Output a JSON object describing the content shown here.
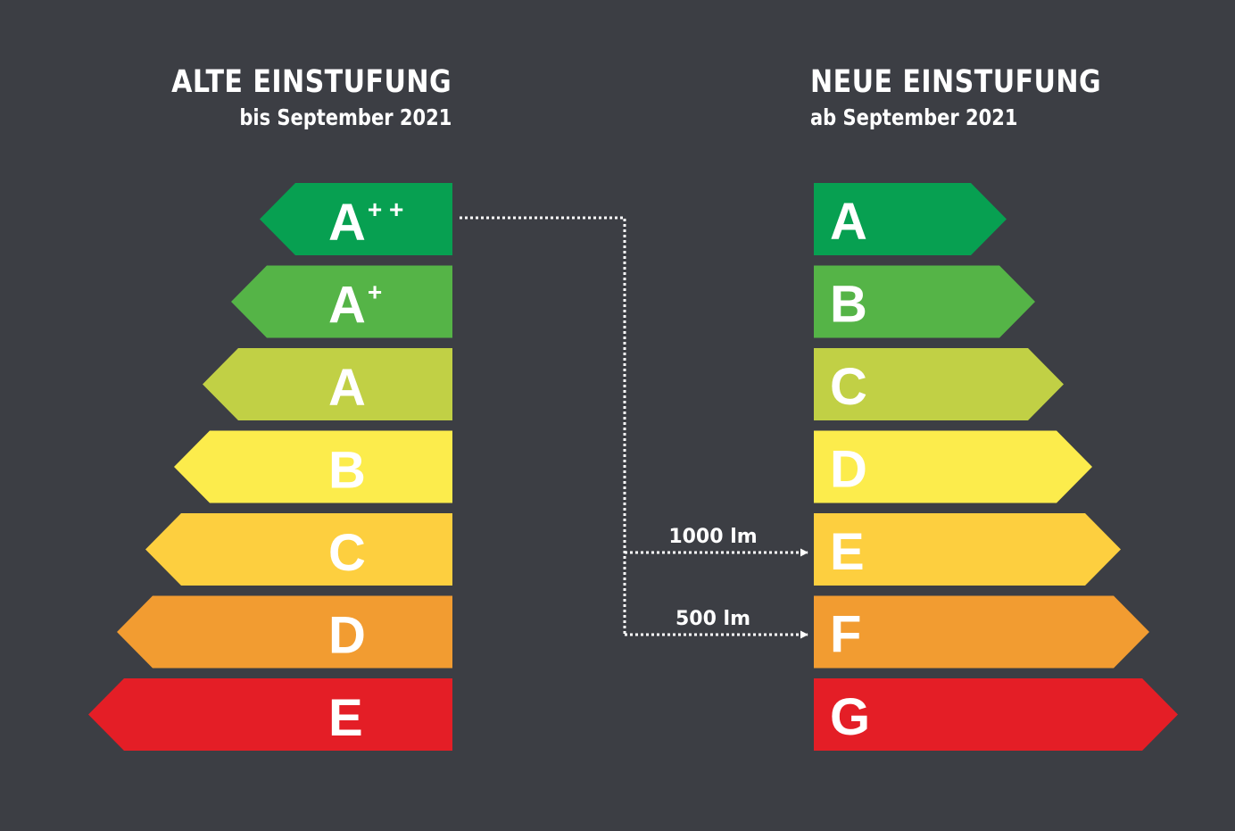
{
  "old_scale": {
    "title": "ALTE EINSTUFUNG",
    "subtitle": "bis September 2021",
    "classes": [
      {
        "letter": "A",
        "sup": "++",
        "color": "#07a051"
      },
      {
        "letter": "A",
        "sup": "+",
        "color": "#55b447"
      },
      {
        "letter": "A",
        "sup": "",
        "color": "#c1d045"
      },
      {
        "letter": "B",
        "sup": "",
        "color": "#fcec4c"
      },
      {
        "letter": "C",
        "sup": "",
        "color": "#fdcf3f"
      },
      {
        "letter": "D",
        "sup": "",
        "color": "#f29c31"
      },
      {
        "letter": "E",
        "sup": "",
        "color": "#e41e26"
      }
    ]
  },
  "new_scale": {
    "title": "NEUE EINSTUFUNG",
    "subtitle": "ab September 2021",
    "classes": [
      {
        "letter": "A",
        "color": "#07a051"
      },
      {
        "letter": "B",
        "color": "#55b447"
      },
      {
        "letter": "C",
        "color": "#c1d045"
      },
      {
        "letter": "D",
        "color": "#fcec4c"
      },
      {
        "letter": "E",
        "color": "#fdcf3f"
      },
      {
        "letter": "F",
        "color": "#f29c31"
      },
      {
        "letter": "G",
        "color": "#e41e26"
      }
    ]
  },
  "mappings": [
    {
      "from": "A++",
      "to": "E",
      "label": "1000 lm"
    },
    {
      "from": "A++",
      "to": "F",
      "label": "500 lm"
    }
  ],
  "colors": {
    "background": "#3c3e44",
    "text": "#ffffff",
    "connector": "#ffffff"
  }
}
